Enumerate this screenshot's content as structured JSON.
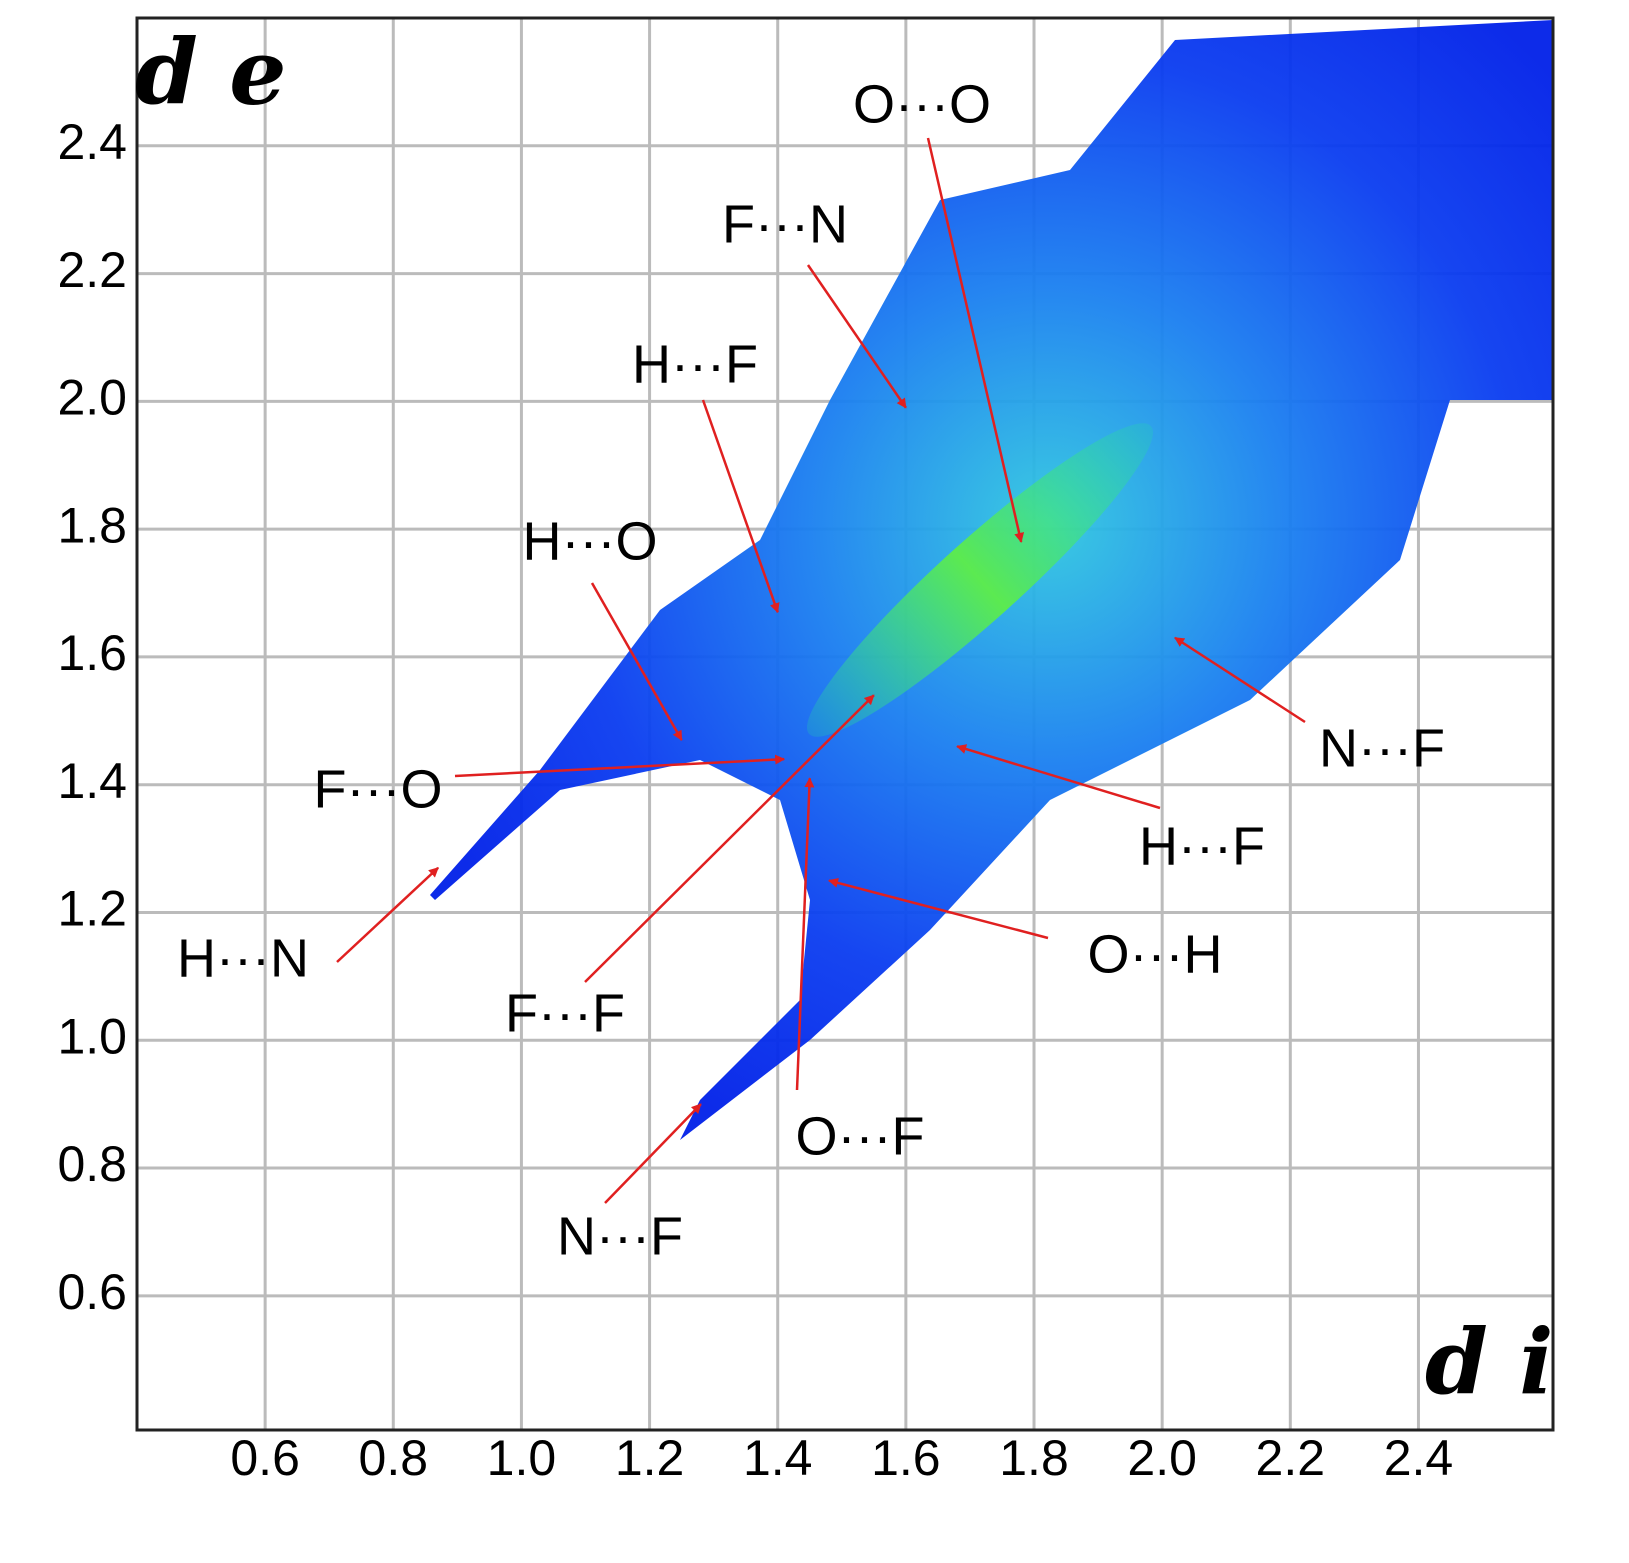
{
  "chart_data": {
    "type": "fingerprint",
    "x_label": "d i",
    "y_label": "d e",
    "xlim": [
      0.4,
      2.61
    ],
    "ylim": [
      0.39,
      2.6
    ],
    "xticks": [
      0.6,
      0.8,
      {
        "value": 1.0,
        "label": "1.0"
      },
      1.2,
      1.4,
      1.6,
      1.8,
      {
        "value": 2.0,
        "label": "2.0"
      },
      2.2,
      2.4
    ],
    "yticks": [
      0.6,
      0.8,
      {
        "value": 1.0,
        "label": "1.0"
      },
      1.2,
      1.4,
      1.6,
      1.8,
      {
        "value": 2.0,
        "label": "2.0"
      },
      2.2,
      2.4
    ],
    "grid": true,
    "arrow_color": "#e02020",
    "annotations": [
      {
        "text": "O···O",
        "x": 1.78,
        "y": 1.78
      },
      {
        "text": "F···N",
        "x": 1.6,
        "y": 1.99
      },
      {
        "text": "H···F",
        "x": 1.4,
        "y": 1.67
      },
      {
        "text": "H···O",
        "x": 1.25,
        "y": 1.47
      },
      {
        "text": "F···O",
        "x": 1.41,
        "y": 1.44
      },
      {
        "text": "H···N",
        "x": 0.87,
        "y": 1.27
      },
      {
        "text": "F···F",
        "x": 1.55,
        "y": 1.54
      },
      {
        "text": "O···F",
        "x": 1.45,
        "y": 1.41
      },
      {
        "text": "N···F",
        "x": 1.28,
        "y": 0.9
      },
      {
        "text": "O···H",
        "x": 1.48,
        "y": 1.25
      },
      {
        "text": "H···F",
        "x": 1.68,
        "y": 1.46
      },
      {
        "text": "N···F",
        "x": 2.02,
        "y": 1.63
      }
    ]
  }
}
